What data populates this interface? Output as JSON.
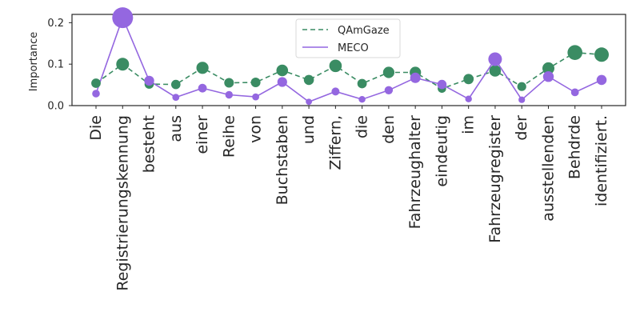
{
  "chart_data": {
    "type": "line",
    "title": "",
    "xlabel": "",
    "ylabel": "Importance",
    "ylim": [
      0,
      0.22
    ],
    "yticks": [
      0.0,
      0.1,
      0.2
    ],
    "ytick_labels": [
      "0.0",
      "0.1",
      "0.2"
    ],
    "grid": false,
    "legend_position": "top-center",
    "categories": [
      "Die",
      "Registrierungskennung",
      "besteht",
      "aus",
      "einer",
      "Reihe",
      "von",
      "Buchstaben",
      "und",
      "Ziffern,",
      "die",
      "den",
      "Fahrzeughalter",
      "eindeutig",
      "im",
      "Fahrzeugregister",
      "der",
      "ausstellenden",
      "Behdrde",
      "identifiziert."
    ],
    "series": [
      {
        "name": "QAmGaze",
        "line_style": "dashed",
        "color": "#3a8c63",
        "values": [
          0.054,
          0.1,
          0.052,
          0.051,
          0.091,
          0.055,
          0.056,
          0.085,
          0.062,
          0.096,
          0.053,
          0.08,
          0.08,
          0.041,
          0.064,
          0.084,
          0.046,
          0.09,
          0.128,
          0.123
        ]
      },
      {
        "name": "MECO",
        "line_style": "solid",
        "color": "#9467e0",
        "values": [
          0.029,
          0.212,
          0.06,
          0.02,
          0.042,
          0.026,
          0.021,
          0.057,
          0.009,
          0.034,
          0.015,
          0.037,
          0.067,
          0.051,
          0.016,
          0.112,
          0.014,
          0.07,
          0.032,
          0.062
        ]
      }
    ]
  }
}
